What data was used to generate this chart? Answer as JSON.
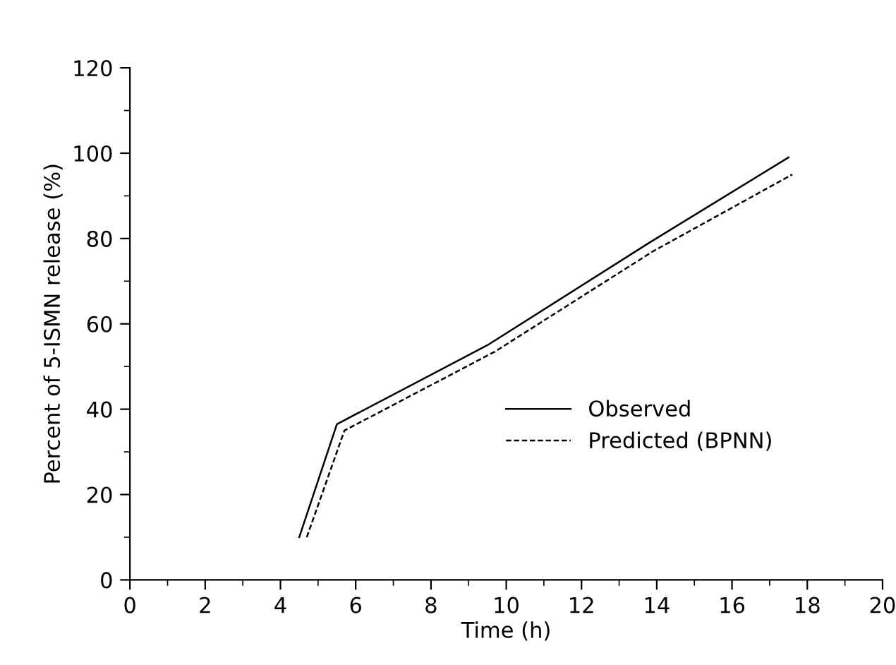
{
  "chart_data": {
    "type": "line",
    "xlabel": "Time (h)",
    "ylabel": "Percent of 5-ISMN release (%)",
    "xlim": [
      0,
      20
    ],
    "xticks": [
      0,
      2,
      4,
      6,
      8,
      10,
      12,
      14,
      16,
      18,
      20
    ],
    "ylim": [
      0,
      120
    ],
    "yticks": [
      0,
      20,
      40,
      60,
      80,
      100,
      120
    ],
    "grid": false,
    "legend": "center right",
    "marker": "none",
    "series": [
      {
        "name": "Observed",
        "color": "#000000",
        "line_style": "solid",
        "x": [
          4.5,
          5.5,
          9.5,
          13.8,
          17.5
        ],
        "values": [
          10,
          36.5,
          55,
          79,
          99
        ]
      },
      {
        "name": "Predicted (BPNN)",
        "color": "#000000",
        "line_style": "dashed",
        "x": [
          4.7,
          5.7,
          9.7,
          13.9,
          17.6
        ],
        "values": [
          10,
          35,
          53.5,
          77,
          95
        ]
      }
    ]
  }
}
